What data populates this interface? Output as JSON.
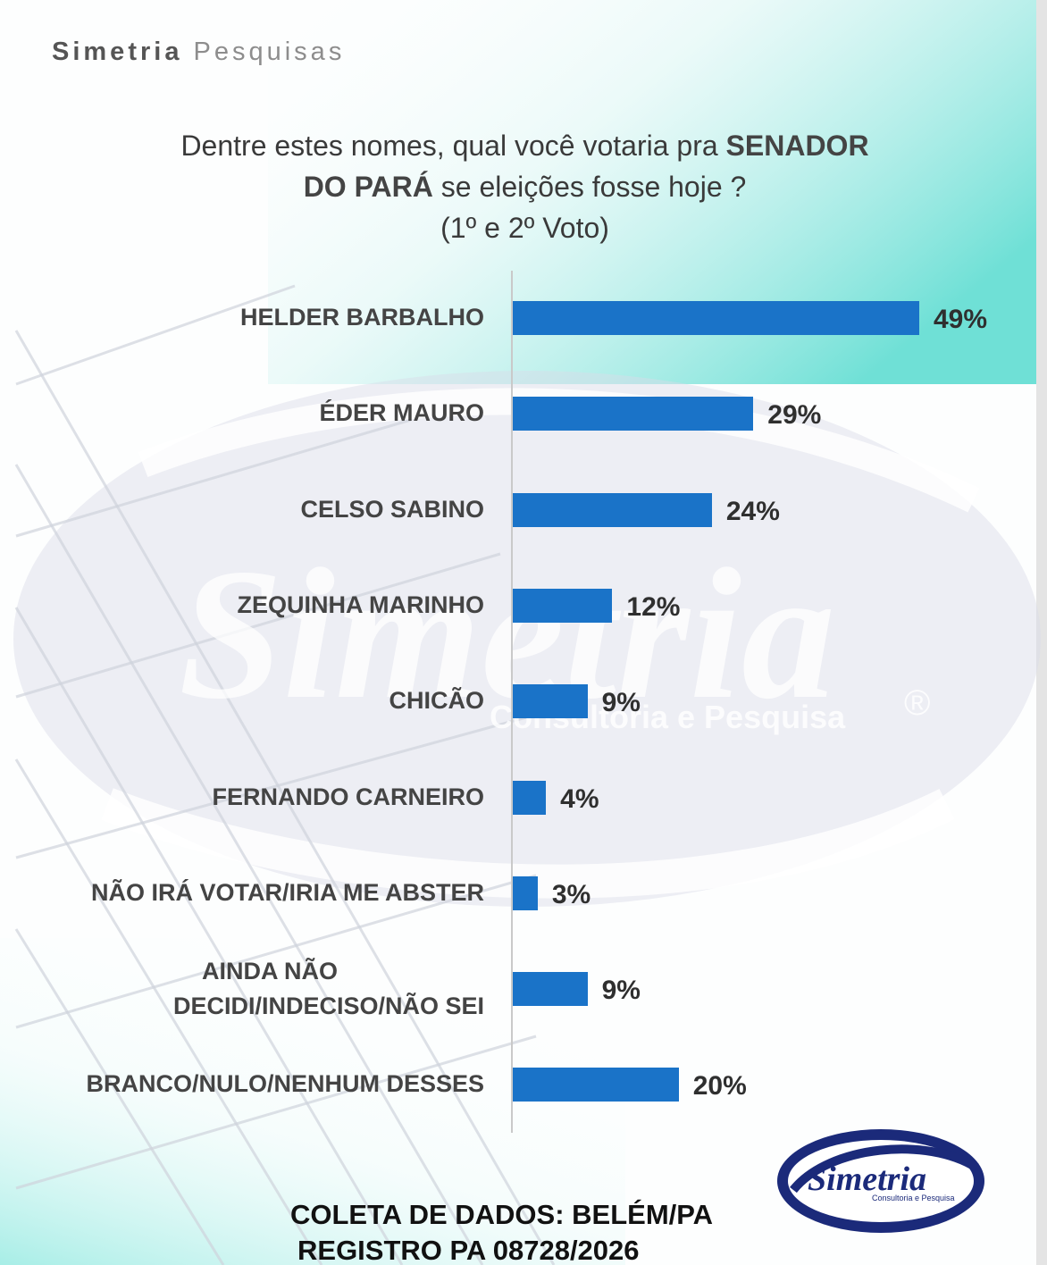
{
  "brand": {
    "name_part1": "Simetria",
    "name_part2": "Pesquisas"
  },
  "question": {
    "text_a": "Dentre estes nomes, qual você votaria pra ",
    "bold_a": "SENADOR",
    "bold_b": "DO PARÁ",
    "text_b": " se eleições fosse hoje ?",
    "line3": "(1º e 2º Voto)"
  },
  "watermark": {
    "word": "Simetria",
    "sub": "Consultoria e Pesquisa",
    "reg": "®"
  },
  "logo": {
    "word": "Simetria",
    "sub": "Consultoria e Pesquisa"
  },
  "footer": {
    "line1": "COLETA DE DADOS: BELÉM/PA",
    "line2": "REGISTRO PA 08728/2026"
  },
  "colors": {
    "bar": "#1a73c8",
    "accent_teal": "#7fe3dc",
    "logo_navy": "#1b2a7a"
  },
  "chart_data": {
    "type": "bar",
    "orientation": "horizontal",
    "categories": [
      "HELDER BARBALHO",
      "ÉDER MAURO",
      "CELSO SABINO",
      "ZEQUINHA MARINHO",
      "CHICÃO",
      "FERNANDO CARNEIRO",
      "NÃO IRÁ VOTAR/IRIA ME ABSTER",
      "AINDA NÃO DECIDI/INDECISO/NÃO SEI",
      "BRANCO/NULO/NENHUM DESSES"
    ],
    "values": [
      49,
      29,
      24,
      12,
      9,
      4,
      3,
      9,
      20
    ],
    "value_labels": [
      "49%",
      "29%",
      "24%",
      "12%",
      "9%",
      "4%",
      "3%",
      "9%",
      "20%"
    ],
    "unit": "%",
    "xlim": [
      0,
      49
    ],
    "grid": false,
    "legend": "none"
  }
}
